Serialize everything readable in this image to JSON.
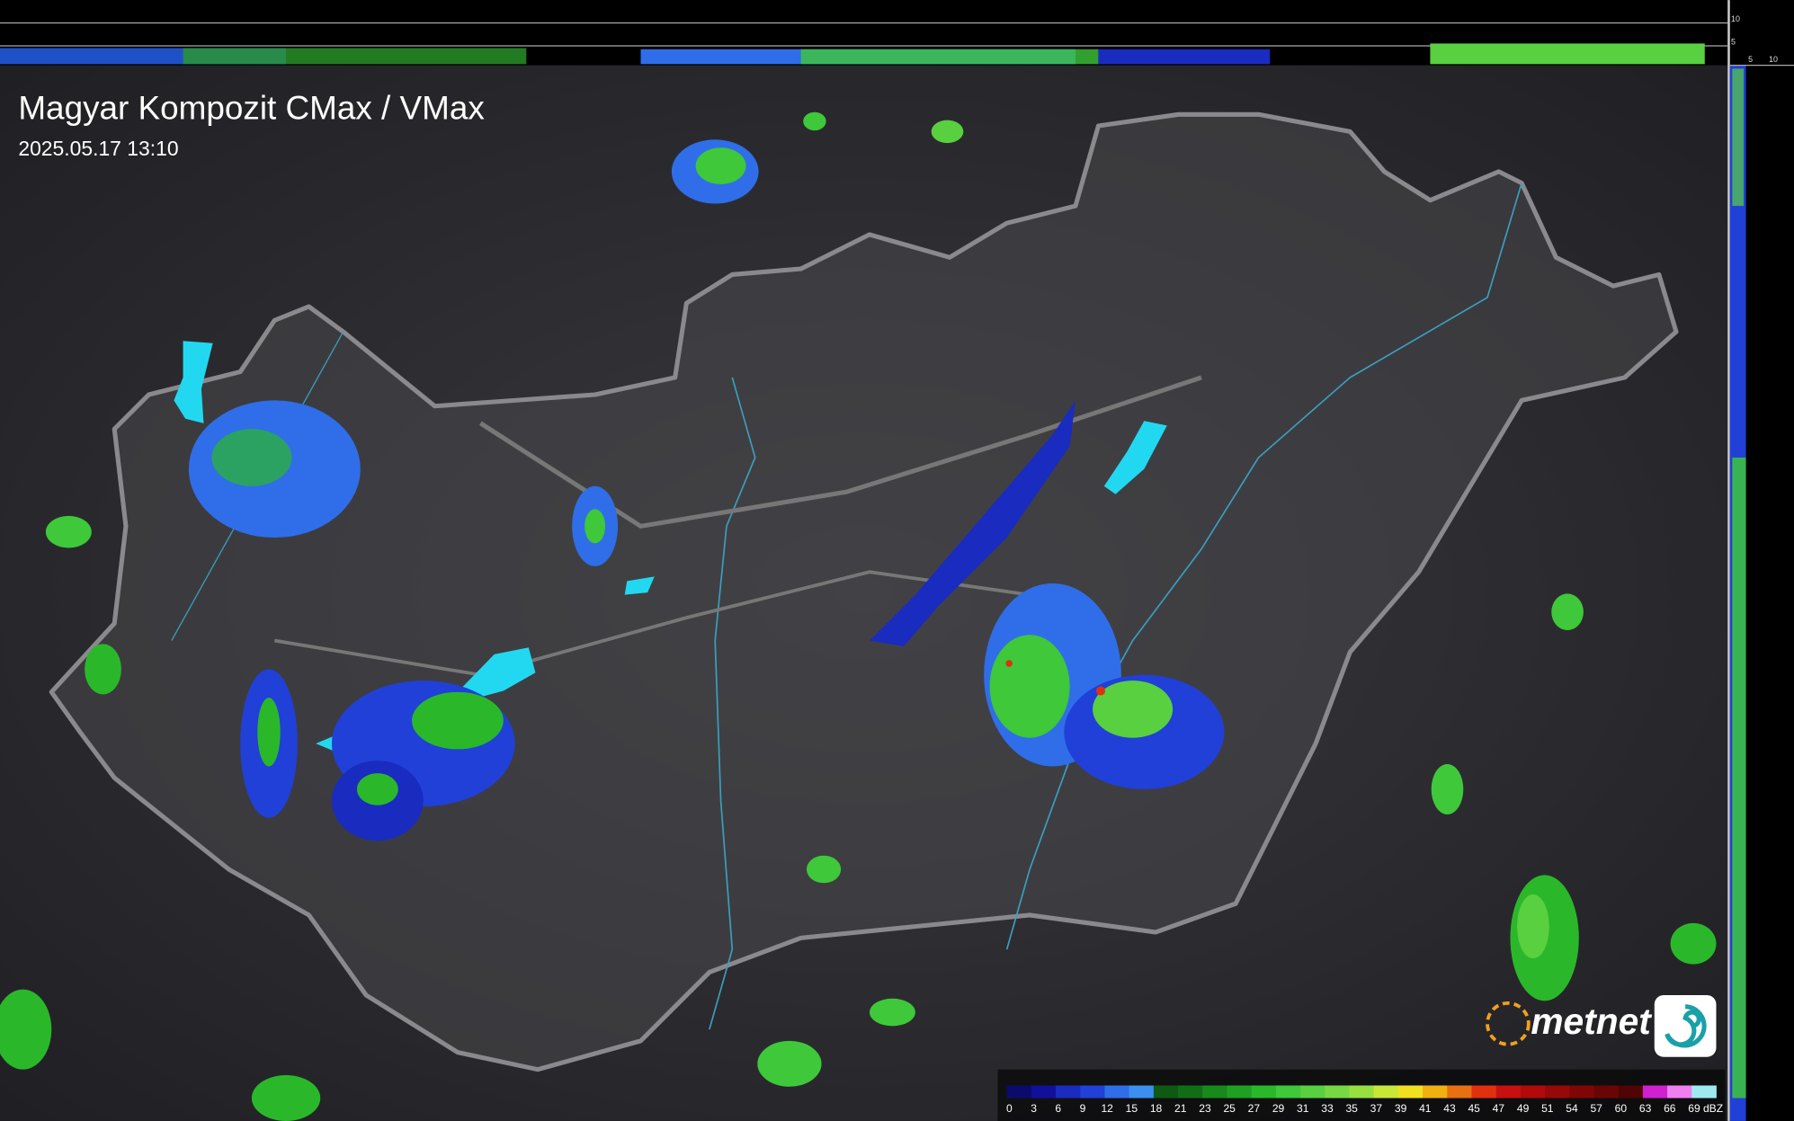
{
  "header": {
    "title": "Magyar Kompozit CMax / VMax",
    "timestamp": "2025.05.17 13:10"
  },
  "profile_axis": {
    "top": [
      "10",
      "5"
    ],
    "right": [
      "5",
      "10"
    ]
  },
  "logo": {
    "text": "metnet"
  },
  "legend": {
    "unit": "dBZ",
    "ticks": [
      "0",
      "3",
      "6",
      "9",
      "12",
      "15",
      "18",
      "21",
      "23",
      "25",
      "27",
      "29",
      "31",
      "33",
      "35",
      "37",
      "39",
      "41",
      "43",
      "45",
      "47",
      "49",
      "51",
      "54",
      "57",
      "60",
      "63",
      "66",
      "69"
    ],
    "colors": [
      "#0b0b6e",
      "#10109a",
      "#1a2bc0",
      "#2040d8",
      "#2f6ee8",
      "#3a8ff0",
      "#0e5a12",
      "#126e16",
      "#188a1c",
      "#1fa022",
      "#2ab82a",
      "#3ec83a",
      "#58d040",
      "#78d844",
      "#98e040",
      "#c8e838",
      "#f0e020",
      "#f0b010",
      "#e87010",
      "#e03010",
      "#c81010",
      "#b00a0a",
      "#980808",
      "#800606",
      "#6a0505",
      "#500404",
      "#d020d0",
      "#f080f0",
      "#a0e8f0"
    ]
  }
}
